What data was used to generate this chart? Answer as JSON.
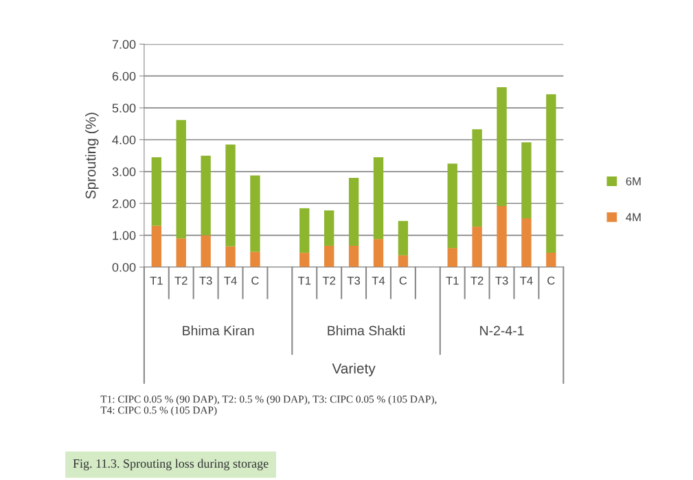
{
  "chart_data": {
    "type": "bar",
    "stacked": true,
    "title": "Fig. 11.3. Sprouting loss during storage",
    "ylabel": "Sprouting (%)",
    "categories": [
      "T1",
      "T2",
      "T3",
      "T4",
      "C",
      null,
      "T1",
      "T2",
      "T3",
      "T4",
      "C",
      null,
      "T1",
      "T2",
      "T3",
      "T4",
      "C"
    ],
    "series": [
      {
        "name": "4M",
        "color": "#e8883a",
        "values": [
          1.3,
          0.9,
          1.0,
          0.65,
          0.48,
          null,
          0.45,
          0.67,
          0.67,
          0.88,
          0.37,
          null,
          0.6,
          1.27,
          1.92,
          1.53,
          0.45
        ]
      },
      {
        "name": "6M",
        "color": "#8db52e",
        "values": [
          2.15,
          3.72,
          2.5,
          3.2,
          2.4,
          null,
          1.4,
          1.11,
          2.13,
          2.57,
          1.08,
          null,
          2.65,
          3.06,
          3.73,
          2.39,
          4.98
        ]
      }
    ],
    "ylim": [
      0,
      7
    ],
    "yticks": [
      {
        "value": 0,
        "label": "0.00"
      },
      {
        "value": 1,
        "label": "1.00"
      },
      {
        "value": 2,
        "label": "2.00"
      },
      {
        "value": 3,
        "label": "3.00"
      },
      {
        "value": 4,
        "label": "4.00"
      },
      {
        "value": 5,
        "label": "5.00"
      },
      {
        "value": 6,
        "label": "6.00"
      },
      {
        "value": 7,
        "label": "7.00"
      }
    ],
    "grid": "y",
    "legend": "right",
    "annotations": [
      "Bhima Kiran",
      "Bhima Shakti",
      "N-2-4-1",
      "Variety",
      "T1: CIPC 0.05 % (90 DAP), T2: 0.5 % (90 DAP), T3: CIPC 0.05 % (105 DAP),\nT4: CIPC 0.5 % (105 DAP)"
    ]
  }
}
